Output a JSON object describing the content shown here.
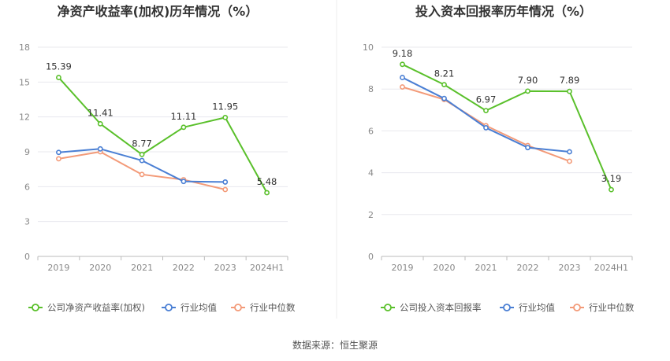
{
  "source_text": "数据来源：恒生聚源",
  "colors": {
    "company": "#5ac02b",
    "avg": "#4a7fd4",
    "median": "#f39a78",
    "grid": "#e8e8ee",
    "axis": "#bbbbbb"
  },
  "chart_data": [
    {
      "type": "line",
      "title": "净资产收益率(加权)历年情况（%）",
      "categories": [
        "2019",
        "2020",
        "2021",
        "2022",
        "2023",
        "2024H1"
      ],
      "ylim": [
        0,
        18
      ],
      "yticks": [
        "0",
        "3",
        "6",
        "9",
        "12",
        "15",
        "18"
      ],
      "grid": true,
      "legend_position": "bottom",
      "series": [
        {
          "name": "公司净资产收益率(加权)",
          "key": "company",
          "values": [
            15.39,
            11.41,
            8.77,
            11.11,
            11.95,
            5.48
          ],
          "labels": [
            "15.39",
            "11.41",
            "8.77",
            "11.11",
            "11.95",
            "5.48"
          ]
        },
        {
          "name": "行业均值",
          "key": "avg",
          "values": [
            8.95,
            9.25,
            8.25,
            6.45,
            6.4,
            null
          ]
        },
        {
          "name": "行业中位数",
          "key": "median",
          "values": [
            8.4,
            9.0,
            7.05,
            6.6,
            5.75,
            null
          ]
        }
      ]
    },
    {
      "type": "line",
      "title": "投入资本回报率历年情况（%）",
      "categories": [
        "2019",
        "2020",
        "2021",
        "2022",
        "2023",
        "2024H1"
      ],
      "ylim": [
        0,
        10
      ],
      "yticks": [
        "0",
        "2",
        "4",
        "6",
        "8",
        "10"
      ],
      "grid": true,
      "legend_position": "bottom",
      "series": [
        {
          "name": "公司投入资本回报率",
          "key": "company",
          "values": [
            9.18,
            8.21,
            6.97,
            7.9,
            7.89,
            3.19
          ],
          "labels": [
            "9.18",
            "8.21",
            "6.97",
            "7.90",
            "7.89",
            "3.19"
          ]
        },
        {
          "name": "行业均值",
          "key": "avg",
          "values": [
            8.55,
            7.55,
            6.15,
            5.2,
            5.0,
            null
          ]
        },
        {
          "name": "行业中位数",
          "key": "median",
          "values": [
            8.1,
            7.5,
            6.25,
            5.3,
            4.55,
            null
          ]
        }
      ]
    }
  ]
}
